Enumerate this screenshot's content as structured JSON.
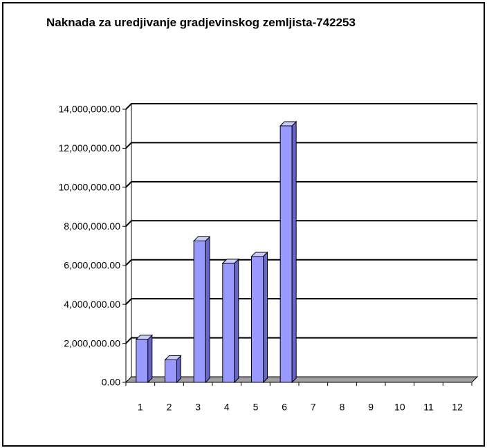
{
  "chart_data": {
    "type": "bar3d",
    "title": "Naknada za uredjivanje gradjevinskog zemljista-742253",
    "categories": [
      "1",
      "2",
      "3",
      "4",
      "5",
      "6",
      "7",
      "8",
      "9",
      "10",
      "11",
      "12"
    ],
    "values": [
      2200000,
      1150000,
      7250000,
      6100000,
      6450000,
      13150000,
      null,
      null,
      null,
      null,
      null,
      null
    ],
    "color": "#9999ff",
    "ylim": [
      0,
      14000000
    ],
    "yticks": [
      {
        "value": 0,
        "label": "0.00"
      },
      {
        "value": 2000000,
        "label": "2,000,000.00"
      },
      {
        "value": 4000000,
        "label": "4,000,000.00"
      },
      {
        "value": 6000000,
        "label": "6,000,000.00"
      },
      {
        "value": 8000000,
        "label": "8,000,000.00"
      },
      {
        "value": 10000000,
        "label": "10,000,000.00"
      },
      {
        "value": 12000000,
        "label": "12,000,000.00"
      },
      {
        "value": 14000000,
        "label": "14,000,000.00"
      }
    ],
    "grid": true
  }
}
